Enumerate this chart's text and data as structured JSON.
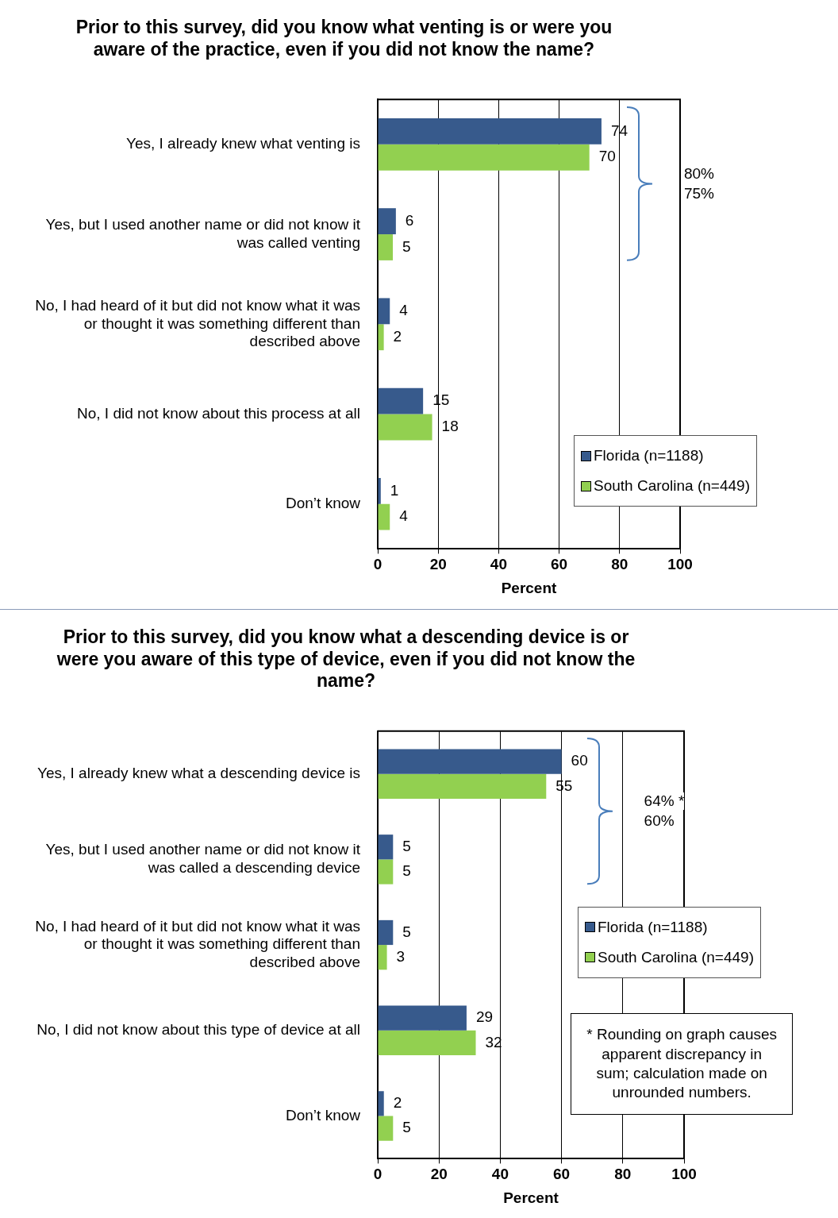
{
  "chart_data": [
    {
      "type": "bar",
      "orientation": "horizontal",
      "title": "Prior to this survey, did you know what venting is or were you aware of the practice, even if you did not know the name?",
      "xlabel": "Percent",
      "categories": [
        "Yes, I already knew what venting is",
        "Yes, but I used another name or did not know it was called venting",
        "No, I had heard of it but did not know what it was or thought it was something different than described above",
        "No, I did not know about this process at all",
        "Don’t know"
      ],
      "series": [
        {
          "name": "Florida (n=1188)",
          "color": "#375a8c",
          "values": [
            74,
            6,
            4,
            15,
            1
          ]
        },
        {
          "name": "South Carolina (n=449)",
          "color": "#92d050",
          "values": [
            70,
            5,
            2,
            18,
            4
          ]
        }
      ],
      "xlim": [
        0,
        100
      ],
      "xticks": [
        0,
        20,
        40,
        60,
        80,
        100
      ],
      "grid": "x",
      "legend": "bottom right",
      "data_labels": true,
      "annotations": [
        "80%",
        "75%"
      ]
    },
    {
      "type": "bar",
      "orientation": "horizontal",
      "title": "Prior to this survey, did you know what a descending device is or were you aware of this type of device, even if you did not know the name?",
      "xlabel": "Percent",
      "categories": [
        "Yes, I already knew what a descending device is",
        "Yes, but I used another name or did not know it was called a descending device",
        "No, I had heard of it but did not know what it was or thought it was something different than described above",
        "No, I did not know about this type of device at all",
        "Don’t know"
      ],
      "series": [
        {
          "name": "Florida (n=1188)",
          "color": "#375a8c",
          "values": [
            60,
            5,
            5,
            29,
            2
          ]
        },
        {
          "name": "South Carolina (n=449)",
          "color": "#92d050",
          "values": [
            55,
            5,
            3,
            32,
            5
          ]
        }
      ],
      "xlim": [
        0,
        100
      ],
      "xticks": [
        0,
        20,
        40,
        60,
        80,
        100
      ],
      "grid": "x",
      "legend": "right",
      "data_labels": true,
      "annotations": [
        "64% *",
        "60%",
        "* Rounding on graph causes apparent discrepancy in sum; calculation made on unrounded numbers."
      ]
    }
  ]
}
